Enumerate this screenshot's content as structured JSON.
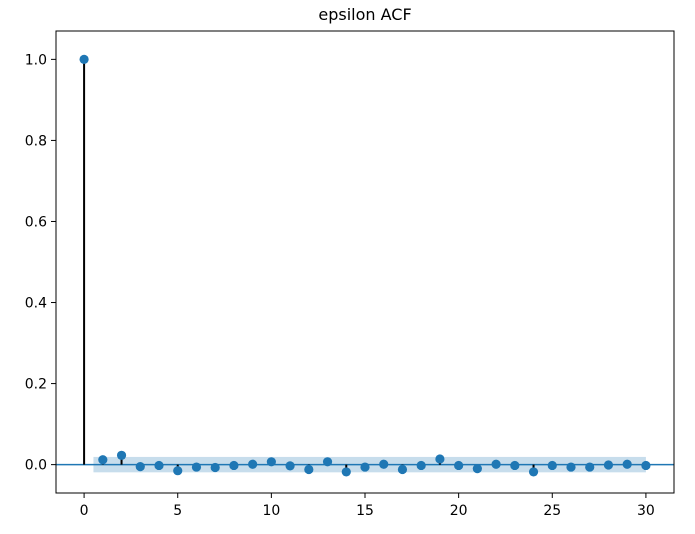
{
  "chart_data": {
    "type": "stem",
    "title": "epsilon ACF",
    "xlabel": "",
    "ylabel": "",
    "xlim": [
      -1.5,
      31.5
    ],
    "ylim": [
      -0.07,
      1.07
    ],
    "xticks": [
      0,
      5,
      10,
      15,
      20,
      25,
      30
    ],
    "xtick_labels": [
      "0",
      "5",
      "10",
      "15",
      "20",
      "25",
      "30"
    ],
    "yticks": [
      0.0,
      0.2,
      0.4,
      0.6,
      0.8,
      1.0
    ],
    "ytick_labels": [
      "0.0",
      "0.2",
      "0.4",
      "0.6",
      "0.8",
      "1.0"
    ],
    "grid": false,
    "series": [
      {
        "lags": [
          0,
          1,
          2,
          3,
          4,
          5,
          6,
          7,
          8,
          9,
          10,
          11,
          12,
          13,
          14,
          15,
          16,
          17,
          18,
          19,
          20,
          21,
          22,
          23,
          24,
          25,
          26,
          27,
          28,
          29,
          30
        ],
        "values": [
          1.0,
          0.012,
          0.023,
          -0.005,
          -0.002,
          -0.015,
          -0.006,
          -0.007,
          -0.002,
          0.001,
          0.007,
          -0.003,
          -0.012,
          0.007,
          -0.018,
          -0.006,
          0.001,
          -0.012,
          -0.002,
          0.014,
          -0.002,
          -0.01,
          0.001,
          -0.002,
          -0.018,
          -0.002,
          -0.006,
          -0.006,
          -0.001,
          0.001,
          -0.002
        ]
      }
    ],
    "confidence_band": {
      "lower": -0.019,
      "upper": 0.019,
      "from_lag": 1,
      "to_lag": 30
    },
    "colors": {
      "marker": "#1f77b4",
      "stem": "#000000",
      "band": "#1f77b4",
      "zero_line": "#1f77b4"
    }
  }
}
